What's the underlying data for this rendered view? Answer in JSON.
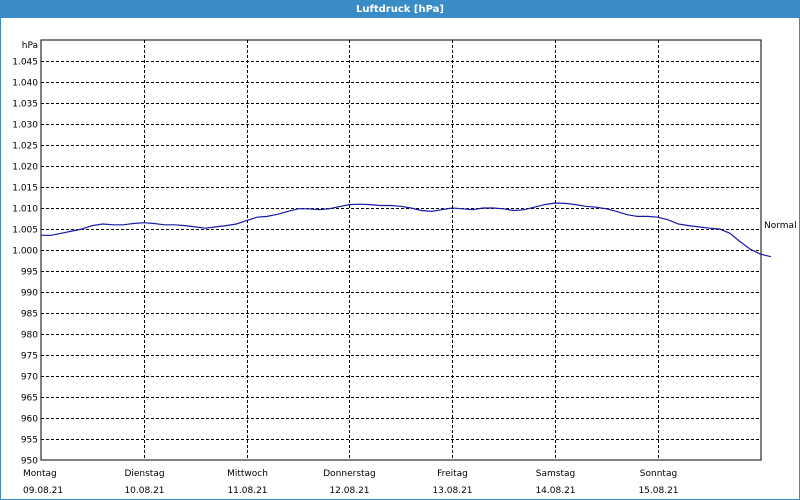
{
  "window": {
    "title": "Luftdruck [hPa]"
  },
  "chart_data": {
    "type": "line",
    "title": "Luftdruck [hPa]",
    "ylabel": "hPa",
    "ylim": [
      950,
      1050
    ],
    "yticks": [
      "950",
      "955",
      "960",
      "965",
      "970",
      "975",
      "980",
      "985",
      "990",
      "995",
      "1.000",
      "1.005",
      "1.010",
      "1.015",
      "1.020",
      "1.025",
      "1.030",
      "1.035",
      "1.040",
      "1.045"
    ],
    "yticks_values": [
      950,
      955,
      960,
      965,
      970,
      975,
      980,
      985,
      990,
      995,
      1000,
      1005,
      1010,
      1015,
      1020,
      1025,
      1030,
      1035,
      1040,
      1045
    ],
    "x_categories": [
      {
        "day": "Montag",
        "date": "09.08.21"
      },
      {
        "day": "Dienstag",
        "date": "10.08.21"
      },
      {
        "day": "Mittwoch",
        "date": "11.08.21"
      },
      {
        "day": "Donnerstag",
        "date": "12.08.21"
      },
      {
        "day": "Freitag",
        "date": "13.08.21"
      },
      {
        "day": "Samstag",
        "date": "14.08.21"
      },
      {
        "day": "Sonntag",
        "date": "15.08.21"
      }
    ],
    "reference_line": {
      "label": "Normal",
      "value": 1005
    },
    "grid": true,
    "series": [
      {
        "color": "#1a1aa8",
        "x": [
          0,
          0.1,
          0.2,
          0.3,
          0.4,
          0.5,
          0.6,
          0.7,
          0.8,
          0.9,
          1.0,
          1.1,
          1.2,
          1.3,
          1.4,
          1.5,
          1.6,
          1.7,
          1.8,
          1.9,
          2.0,
          2.1,
          2.2,
          2.3,
          2.4,
          2.5,
          2.6,
          2.7,
          2.8,
          2.9,
          3.0,
          3.1,
          3.2,
          3.3,
          3.4,
          3.5,
          3.6,
          3.7,
          3.8,
          3.9,
          4.0,
          4.1,
          4.2,
          4.3,
          4.4,
          4.5,
          4.6,
          4.7,
          4.8,
          4.9,
          5.0,
          5.1,
          5.2,
          5.3,
          5.4,
          5.5,
          5.6,
          5.7,
          5.8,
          5.9,
          6.0,
          6.1,
          6.2,
          6.3,
          6.4,
          6.5,
          6.6,
          6.7,
          6.8,
          6.9,
          7.0,
          7.1
        ],
        "y": [
          1003.5,
          1003.5,
          1004.0,
          1004.5,
          1005.0,
          1005.8,
          1006.2,
          1006.0,
          1006.0,
          1006.3,
          1006.5,
          1006.3,
          1006.0,
          1006.0,
          1005.8,
          1005.5,
          1005.2,
          1005.5,
          1005.8,
          1006.2,
          1007.0,
          1007.8,
          1008.0,
          1008.5,
          1009.2,
          1009.8,
          1009.8,
          1009.6,
          1009.8,
          1010.3,
          1010.8,
          1010.9,
          1010.8,
          1010.6,
          1010.6,
          1010.4,
          1010.0,
          1009.4,
          1009.2,
          1009.6,
          1010.0,
          1009.8,
          1009.6,
          1010.0,
          1010.0,
          1009.8,
          1009.4,
          1009.6,
          1010.2,
          1010.8,
          1011.2,
          1011.1,
          1010.8,
          1010.4,
          1010.2,
          1009.8,
          1009.2,
          1008.4,
          1008.0,
          1008.0,
          1007.8,
          1007.2,
          1006.2,
          1005.8,
          1005.5,
          1005.2,
          1005.0,
          1004.0,
          1002.0,
          1000.2,
          999.0,
          998.4
        ]
      }
    ]
  }
}
